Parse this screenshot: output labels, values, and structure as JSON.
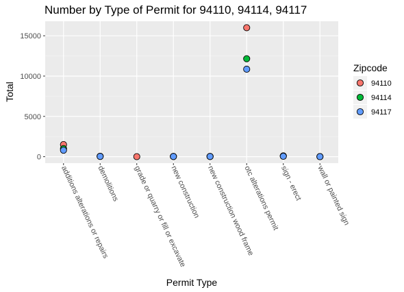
{
  "chart_data": {
    "type": "scatter",
    "title": "Number by Type of Permit for 94110, 94114, 94117",
    "xlabel": "Permit Type",
    "ylabel": "Total",
    "categories": [
      "additions alterations or repairs",
      "demolitions",
      "grade or quarry or fill or excavate",
      "new construction",
      "new construction wood frame",
      "otc alterations permit",
      "sign - erect",
      "wall or painted sign"
    ],
    "y_ticks": [
      0,
      5000,
      10000,
      15000
    ],
    "y_tick_labels": [
      "0",
      "5000",
      "10000",
      "15000"
    ],
    "ylim": [
      -800,
      16800
    ],
    "grid": true,
    "legend_title": "Zipcode",
    "legend_position": "right",
    "series": [
      {
        "name": "94110",
        "color": "#F8766D",
        "values": [
          1500,
          50,
          5,
          30,
          30,
          16000,
          100,
          10
        ]
      },
      {
        "name": "94114",
        "color": "#00BA38",
        "values": [
          1000,
          40,
          null,
          20,
          20,
          12150,
          80,
          8
        ]
      },
      {
        "name": "94117",
        "color": "#619CFF",
        "values": [
          800,
          30,
          null,
          20,
          20,
          10850,
          50,
          5
        ]
      }
    ]
  }
}
